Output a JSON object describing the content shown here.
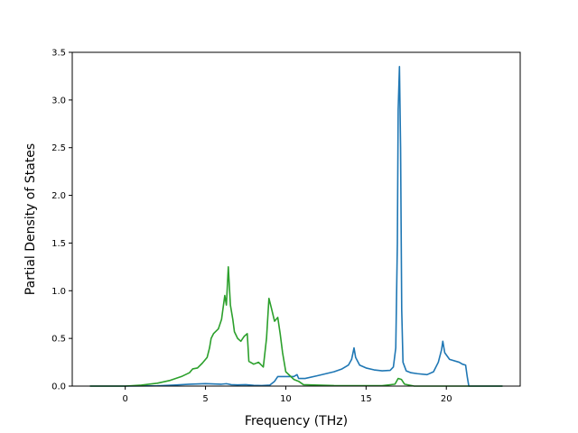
{
  "chart_data": {
    "type": "line",
    "xlabel": "Frequency (THz)",
    "ylabel": "Partial Density of States",
    "xlim": [
      -3.3,
      24.6
    ],
    "ylim": [
      0,
      3.5
    ],
    "xticks": [
      0,
      5,
      10,
      15,
      20
    ],
    "yticks": [
      0.0,
      0.5,
      1.0,
      1.5,
      2.0,
      2.5,
      3.0,
      3.5
    ],
    "grid": false,
    "series": [
      {
        "color": "#1f77b4",
        "points": [
          [
            -2.2,
            0
          ],
          [
            0,
            0
          ],
          [
            2,
            0.003
          ],
          [
            3,
            0.01
          ],
          [
            4,
            0.02
          ],
          [
            5,
            0.025
          ],
          [
            6,
            0.02
          ],
          [
            6.3,
            0.025
          ],
          [
            6.6,
            0.015
          ],
          [
            7,
            0.012
          ],
          [
            7.5,
            0.015
          ],
          [
            8,
            0.008
          ],
          [
            8.5,
            0.005
          ],
          [
            9,
            0.01
          ],
          [
            9.3,
            0.05
          ],
          [
            9.5,
            0.1
          ],
          [
            10,
            0.1
          ],
          [
            10.5,
            0.1
          ],
          [
            10.7,
            0.12
          ],
          [
            10.8,
            0.08
          ],
          [
            11.2,
            0.08
          ],
          [
            12,
            0.11
          ],
          [
            13,
            0.15
          ],
          [
            13.5,
            0.18
          ],
          [
            13.9,
            0.22
          ],
          [
            14.1,
            0.28
          ],
          [
            14.25,
            0.4
          ],
          [
            14.35,
            0.3
          ],
          [
            14.6,
            0.22
          ],
          [
            15,
            0.19
          ],
          [
            15.5,
            0.17
          ],
          [
            16,
            0.16
          ],
          [
            16.5,
            0.165
          ],
          [
            16.7,
            0.2
          ],
          [
            16.85,
            0.4
          ],
          [
            16.95,
            1.5
          ],
          [
            17.0,
            2.9
          ],
          [
            17.08,
            3.35
          ],
          [
            17.15,
            2.5
          ],
          [
            17.22,
            0.8
          ],
          [
            17.3,
            0.25
          ],
          [
            17.5,
            0.16
          ],
          [
            17.8,
            0.14
          ],
          [
            18.2,
            0.13
          ],
          [
            18.8,
            0.12
          ],
          [
            19.2,
            0.15
          ],
          [
            19.5,
            0.25
          ],
          [
            19.7,
            0.38
          ],
          [
            19.78,
            0.47
          ],
          [
            19.9,
            0.35
          ],
          [
            20.2,
            0.28
          ],
          [
            20.8,
            0.25
          ],
          [
            21.0,
            0.23
          ],
          [
            21.2,
            0.22
          ],
          [
            21.3,
            0.1
          ],
          [
            21.4,
            0
          ],
          [
            23.5,
            0
          ]
        ]
      },
      {
        "color": "#2ca02c",
        "points": [
          [
            -2.2,
            0
          ],
          [
            0,
            0
          ],
          [
            1,
            0.01
          ],
          [
            2,
            0.03
          ],
          [
            2.8,
            0.06
          ],
          [
            3.5,
            0.1
          ],
          [
            4,
            0.14
          ],
          [
            4.2,
            0.18
          ],
          [
            4.5,
            0.19
          ],
          [
            4.8,
            0.24
          ],
          [
            5.1,
            0.3
          ],
          [
            5.25,
            0.4
          ],
          [
            5.35,
            0.5
          ],
          [
            5.5,
            0.55
          ],
          [
            5.8,
            0.6
          ],
          [
            6.0,
            0.7
          ],
          [
            6.2,
            0.95
          ],
          [
            6.3,
            0.85
          ],
          [
            6.42,
            1.25
          ],
          [
            6.55,
            0.85
          ],
          [
            6.7,
            0.7
          ],
          [
            6.8,
            0.57
          ],
          [
            7.0,
            0.5
          ],
          [
            7.2,
            0.47
          ],
          [
            7.4,
            0.52
          ],
          [
            7.6,
            0.55
          ],
          [
            7.7,
            0.26
          ],
          [
            8.0,
            0.23
          ],
          [
            8.3,
            0.25
          ],
          [
            8.6,
            0.2
          ],
          [
            8.8,
            0.5
          ],
          [
            8.95,
            0.92
          ],
          [
            9.1,
            0.82
          ],
          [
            9.3,
            0.68
          ],
          [
            9.5,
            0.72
          ],
          [
            9.65,
            0.55
          ],
          [
            9.8,
            0.35
          ],
          [
            10.0,
            0.15
          ],
          [
            10.5,
            0.07
          ],
          [
            10.8,
            0.05
          ],
          [
            11.1,
            0.015
          ],
          [
            12,
            0.01
          ],
          [
            13,
            0.005
          ],
          [
            14,
            0.004
          ],
          [
            16,
            0.004
          ],
          [
            16.8,
            0.02
          ],
          [
            17.0,
            0.08
          ],
          [
            17.2,
            0.07
          ],
          [
            17.4,
            0.02
          ],
          [
            18,
            0
          ],
          [
            23.5,
            0
          ]
        ]
      }
    ]
  }
}
